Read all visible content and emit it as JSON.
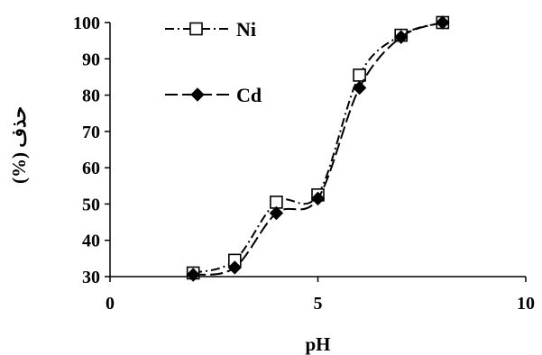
{
  "chart_data": {
    "type": "line",
    "title": "",
    "xlabel": "pH",
    "ylabel": "حذف (%)",
    "xlim": [
      0,
      10
    ],
    "ylim": [
      30,
      100
    ],
    "x_ticks": [
      "0",
      "5",
      "10"
    ],
    "y_ticks": [
      "30",
      "40",
      "50",
      "60",
      "70",
      "80",
      "90",
      "100"
    ],
    "grid": false,
    "legend_position": "top-left",
    "series": [
      {
        "name": "Ni",
        "marker": "open-square",
        "line_style": "dash-dot",
        "color": "#000000",
        "x": [
          2,
          3,
          4,
          5,
          6,
          7,
          8
        ],
        "y": [
          31,
          34.5,
          50.5,
          52.5,
          85.5,
          96.5,
          100
        ]
      },
      {
        "name": "Cd",
        "marker": "filled-diamond",
        "line_style": "long-dash",
        "color": "#000000",
        "x": [
          2,
          3,
          4,
          5,
          6,
          7,
          8
        ],
        "y": [
          30.5,
          32.5,
          47.5,
          51.5,
          82,
          96,
          100
        ]
      }
    ]
  }
}
